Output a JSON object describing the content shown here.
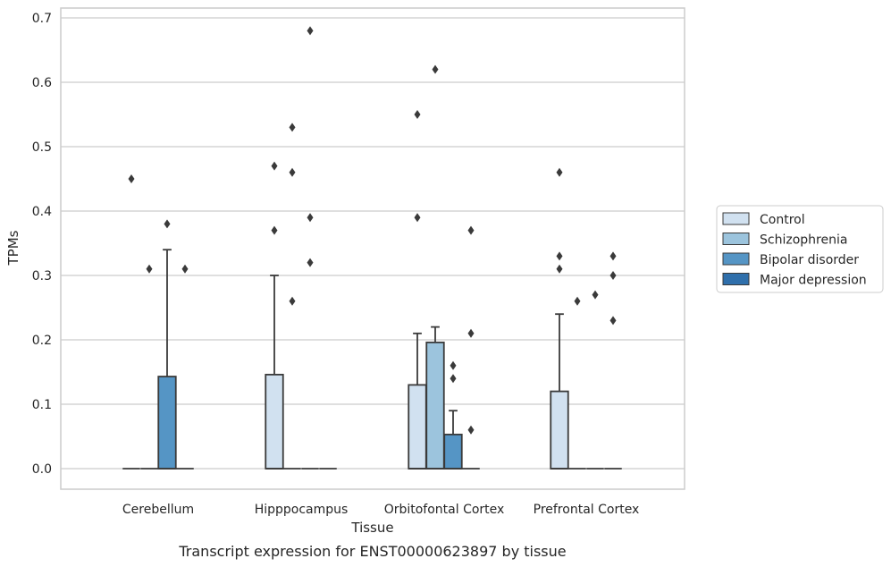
{
  "caption": "Transcript expression for ENST00000623897 by tissue",
  "chart_data": {
    "type": "box",
    "xlabel": "Tissue",
    "ylabel": "TPMs",
    "ylim": [
      -0.033,
      0.715
    ],
    "yticks": [
      "0.0",
      "0.1",
      "0.2",
      "0.3",
      "0.4",
      "0.5",
      "0.6",
      "0.7"
    ],
    "grid": "horizontal",
    "legend_position": "right",
    "categories": [
      "Cerebellum",
      "Hipppocampus",
      "Orbitofontal Cortex",
      "Prefrontal Cortex"
    ],
    "hue_order": [
      "Control",
      "Schizophrenia",
      "Bipolar disorder",
      "Major depression"
    ],
    "colors": {
      "Control": "#d1e1f0",
      "Schizophrenia": "#9cc4dd",
      "Bipolar disorder": "#5595c5",
      "Major depression": "#2f6fab",
      "edge": "#3a3a3a",
      "grid": "#cccccc",
      "frame": "#cccccc"
    },
    "boxes": [
      {
        "category": "Cerebellum",
        "series": "Control",
        "q1": 0.0,
        "median": 0.0,
        "q3": 0.0,
        "whisker_high": 0.0,
        "outliers": [
          0.45
        ]
      },
      {
        "category": "Cerebellum",
        "series": "Schizophrenia",
        "q1": 0.0,
        "median": 0.0,
        "q3": 0.0,
        "whisker_high": 0.0,
        "outliers": [
          0.31
        ]
      },
      {
        "category": "Cerebellum",
        "series": "Bipolar disorder",
        "q1": 0.0,
        "median": 0.0,
        "q3": 0.143,
        "whisker_high": 0.34,
        "outliers": [
          0.38
        ]
      },
      {
        "category": "Cerebellum",
        "series": "Major depression",
        "q1": 0.0,
        "median": 0.0,
        "q3": 0.0,
        "whisker_high": 0.0,
        "outliers": [
          0.31
        ]
      },
      {
        "category": "Hipppocampus",
        "series": "Control",
        "q1": 0.0,
        "median": 0.0,
        "q3": 0.146,
        "whisker_high": 0.3,
        "outliers": [
          0.37,
          0.47
        ]
      },
      {
        "category": "Hipppocampus",
        "series": "Schizophrenia",
        "q1": 0.0,
        "median": 0.0,
        "q3": 0.0,
        "whisker_high": 0.0,
        "outliers": [
          0.26,
          0.46,
          0.53
        ]
      },
      {
        "category": "Hipppocampus",
        "series": "Bipolar disorder",
        "q1": 0.0,
        "median": 0.0,
        "q3": 0.0,
        "whisker_high": 0.0,
        "outliers": [
          0.32,
          0.39,
          0.68
        ]
      },
      {
        "category": "Hipppocampus",
        "series": "Major depression",
        "q1": 0.0,
        "median": 0.0,
        "q3": 0.0,
        "whisker_high": 0.0,
        "outliers": []
      },
      {
        "category": "Orbitofontal Cortex",
        "series": "Control",
        "q1": 0.0,
        "median": 0.0,
        "q3": 0.13,
        "whisker_high": 0.21,
        "outliers": [
          0.39,
          0.55
        ]
      },
      {
        "category": "Orbitofontal Cortex",
        "series": "Schizophrenia",
        "q1": 0.0,
        "median": 0.0,
        "q3": 0.196,
        "whisker_high": 0.22,
        "outliers": [
          0.62
        ]
      },
      {
        "category": "Orbitofontal Cortex",
        "series": "Bipolar disorder",
        "q1": 0.0,
        "median": 0.0,
        "q3": 0.053,
        "whisker_high": 0.09,
        "outliers": [
          0.14,
          0.16
        ]
      },
      {
        "category": "Orbitofontal Cortex",
        "series": "Major depression",
        "q1": 0.0,
        "median": 0.0,
        "q3": 0.0,
        "whisker_high": 0.0,
        "outliers": [
          0.06,
          0.21,
          0.37
        ]
      },
      {
        "category": "Prefrontal Cortex",
        "series": "Control",
        "q1": 0.0,
        "median": 0.0,
        "q3": 0.12,
        "whisker_high": 0.24,
        "outliers": [
          0.31,
          0.33,
          0.46
        ]
      },
      {
        "category": "Prefrontal Cortex",
        "series": "Schizophrenia",
        "q1": 0.0,
        "median": 0.0,
        "q3": 0.0,
        "whisker_high": 0.0,
        "outliers": [
          0.26
        ]
      },
      {
        "category": "Prefrontal Cortex",
        "series": "Bipolar disorder",
        "q1": 0.0,
        "median": 0.0,
        "q3": 0.0,
        "whisker_high": 0.0,
        "outliers": [
          0.27
        ]
      },
      {
        "category": "Prefrontal Cortex",
        "series": "Major depression",
        "q1": 0.0,
        "median": 0.0,
        "q3": 0.0,
        "whisker_high": 0.0,
        "outliers": [
          0.23,
          0.3,
          0.33
        ]
      }
    ]
  }
}
